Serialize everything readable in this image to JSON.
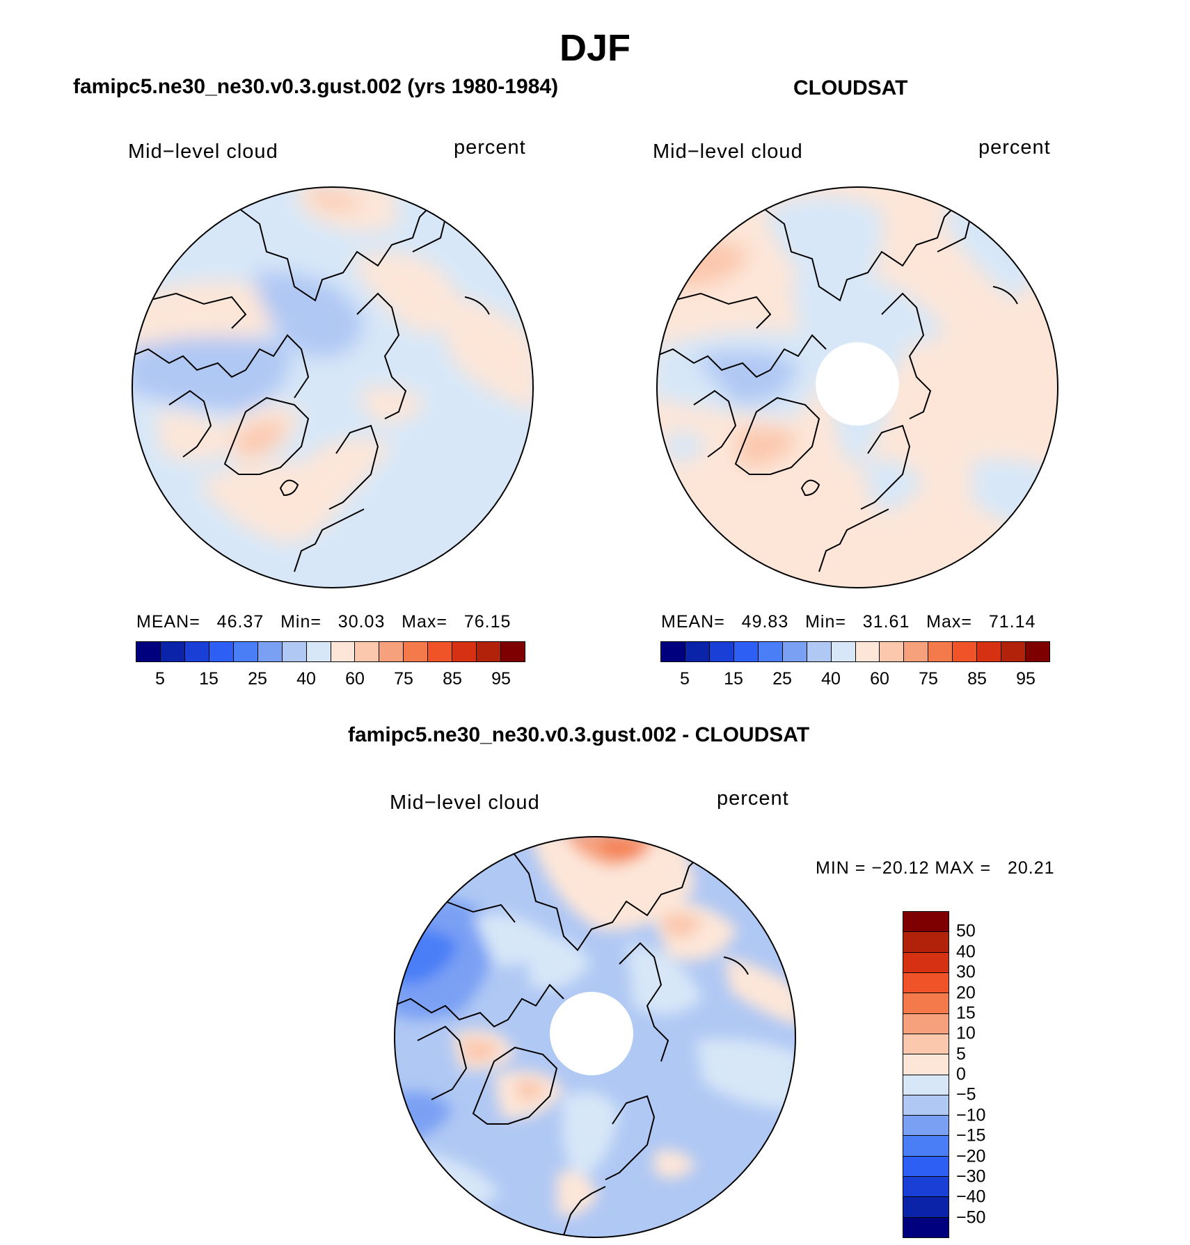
{
  "figure": {
    "title": "DJF",
    "season": "DJF",
    "field_label": "Mid−level cloud",
    "units_label": "percent"
  },
  "panels": {
    "model": {
      "case_title": "famipc5.ne30_ne30.v0.3.gust.002 (yrs 1980-1984)",
      "field_label": "Mid−level cloud",
      "units_label": "percent",
      "stats_text": "MEAN=   46.37   Min=   30.03   Max=   76.15",
      "mean": 46.37,
      "min": 30.03,
      "max": 76.15
    },
    "obs": {
      "case_title": "CLOUDSAT",
      "field_label": "Mid−level cloud",
      "units_label": "percent",
      "stats_text": "MEAN=   49.83   Min=   31.61   Max=   71.14",
      "mean": 49.83,
      "min": 31.61,
      "max": 71.14
    },
    "diff": {
      "case_title": "famipc5.ne30_ne30.v0.3.gust.002 - CLOUDSAT",
      "field_label": "Mid−level cloud",
      "units_label": "percent",
      "stats_text": "MIN = −20.12 MAX =   20.21",
      "min": -20.12,
      "max": 20.21
    }
  },
  "colorbar_abs": {
    "levels": [
      5,
      10,
      15,
      20,
      25,
      30,
      40,
      50,
      60,
      70,
      75,
      80,
      85,
      90,
      95
    ],
    "tick_labels": [
      "5",
      "15",
      "25",
      "40",
      "60",
      "75",
      "85",
      "95"
    ],
    "colors": [
      "#00007f",
      "#0b23a8",
      "#1a3fd6",
      "#2d5ff5",
      "#4a7ef7",
      "#7aa0f4",
      "#b0c8f4",
      "#d7e7f8",
      "#fde6d8",
      "#fbc7ad",
      "#f7a07c",
      "#f47a4c",
      "#ef5327",
      "#d63112",
      "#b2210a",
      "#7f0000"
    ]
  },
  "colorbar_diff": {
    "levels": [
      -50,
      -40,
      -30,
      -20,
      -15,
      -10,
      -5,
      0,
      5,
      10,
      15,
      20,
      30,
      40,
      50
    ],
    "tick_labels": [
      "50",
      "40",
      "30",
      "20",
      "15",
      "10",
      "5",
      "0",
      "−5",
      "−10",
      "−15",
      "−20",
      "−30",
      "−40",
      "−50"
    ],
    "colors_top_to_bottom": [
      "#7f0000",
      "#b2210a",
      "#d63112",
      "#ef5327",
      "#f47a4c",
      "#f7a07c",
      "#fbc7ad",
      "#fde6d8",
      "#d7e7f8",
      "#b0c8f4",
      "#7aa0f4",
      "#4a7ef7",
      "#2d5ff5",
      "#1a3fd6",
      "#0b23a8",
      "#00007f"
    ]
  }
}
